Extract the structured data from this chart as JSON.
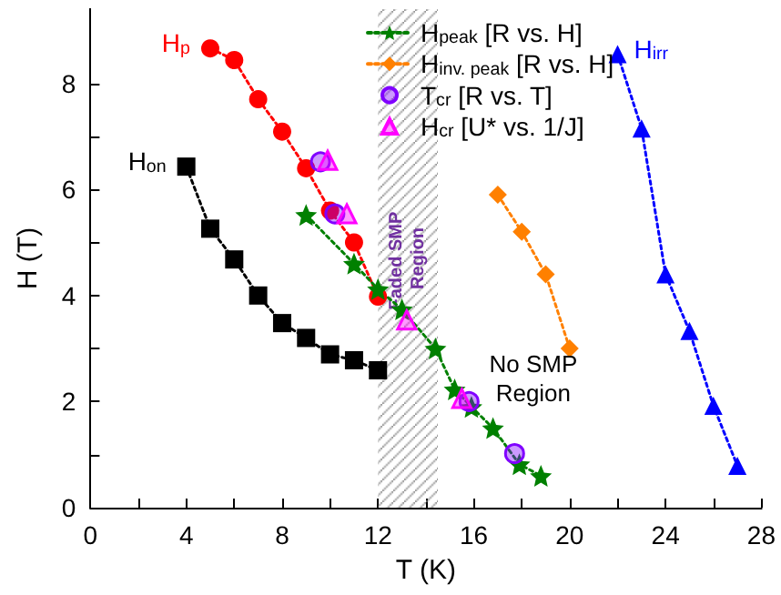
{
  "chart_data": {
    "type": "line",
    "xlabel": "T (K)",
    "ylabel": "H (T)",
    "xlim": [
      0,
      28
    ],
    "xticks": [
      0,
      4,
      8,
      12,
      16,
      20,
      24,
      28
    ],
    "ylim": [
      0,
      9.4
    ],
    "yticks": [
      0,
      2,
      4,
      6,
      8
    ],
    "grid": false,
    "legend": "top right",
    "line_style": "dotted",
    "series": [
      {
        "name": "H$_{p}$",
        "color": "#ff0000",
        "marker": "circle",
        "x": [
          5,
          6,
          7,
          8,
          9,
          10,
          11,
          12
        ],
        "values": [
          8.66,
          8.44,
          7.7,
          7.09,
          6.4,
          5.6,
          5.0,
          3.98
        ]
      },
      {
        "name": "H$_{on}$",
        "color": "#000000",
        "marker": "square",
        "x": [
          4,
          5,
          6,
          7,
          8,
          9,
          10,
          11,
          12
        ],
        "values": [
          6.43,
          5.26,
          4.68,
          4.0,
          3.48,
          3.2,
          2.89,
          2.78,
          2.59
        ]
      },
      {
        "name": "H$_{peak}$ [R vs. H]",
        "color": "#008000",
        "marker": "star",
        "x": [
          9,
          11,
          12,
          13,
          14.4,
          15.2,
          15.9,
          16.8,
          17.9,
          18.8
        ],
        "values": [
          5.52,
          4.6,
          4.12,
          3.74,
          3.0,
          2.23,
          1.9,
          1.5,
          0.82,
          0.6
        ]
      },
      {
        "name": "H$_{inv. peak}$ [R vs. H]",
        "color": "#ff8000",
        "marker": "diamond",
        "x": [
          17,
          18,
          19,
          20
        ],
        "values": [
          5.9,
          5.2,
          4.4,
          3.0
        ]
      },
      {
        "name": "T$_{cr}$ [R vs. T]",
        "type": "scatter",
        "color": "#8000ff",
        "marker": "circle",
        "x": [
          9.6,
          10.2,
          15.8,
          17.7
        ],
        "values": [
          6.52,
          5.54,
          2.0,
          1.02
        ]
      },
      {
        "name": "H$_{cr}$ [U* vs. 1/J]",
        "type": "scatter",
        "color": "#ff00ff",
        "marker": "triangle",
        "x": [
          9.9,
          10.7,
          13.2,
          15.5
        ],
        "values": [
          6.55,
          5.54,
          3.54,
          2.06
        ]
      },
      {
        "name": "H$_{irr}$",
        "color": "#0000ff",
        "marker": "triangle",
        "x": [
          22,
          23,
          24,
          25,
          26,
          27
        ],
        "values": [
          8.55,
          7.15,
          4.4,
          3.33,
          1.92,
          0.79
        ]
      }
    ],
    "bands": [
      {
        "axis": "x",
        "from": 12,
        "to": 14.5,
        "label": "Faded SMP Region",
        "color": "#7030a0"
      }
    ],
    "annotations": [
      "No SMP\nRegion"
    ]
  }
}
